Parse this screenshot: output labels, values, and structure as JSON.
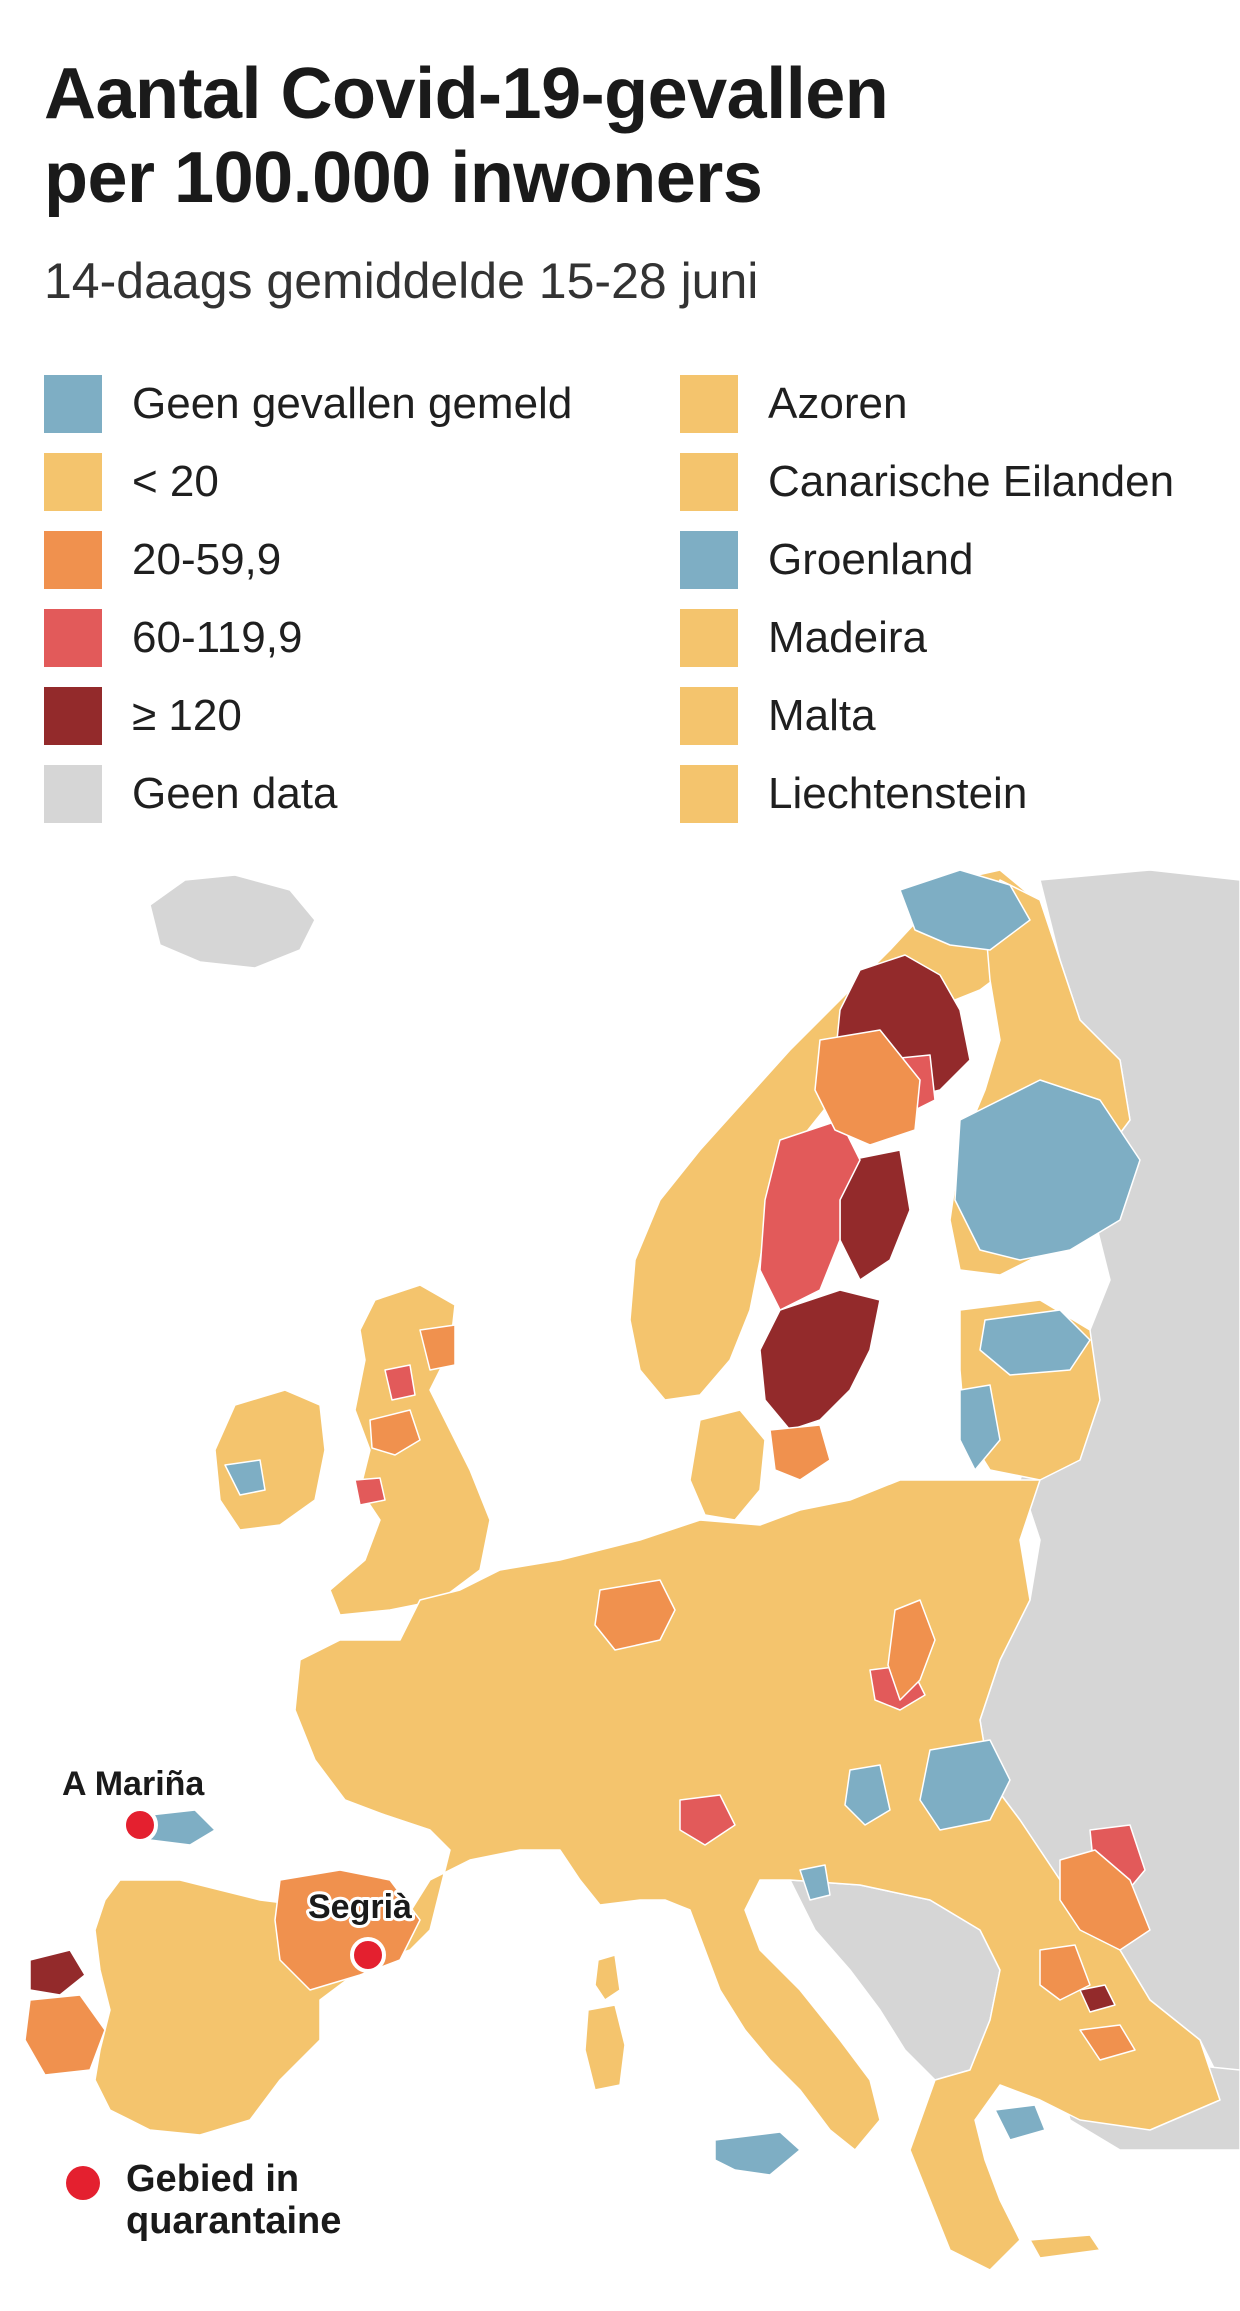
{
  "title": {
    "line1": "Aantal Covid-19-gevallen",
    "line2": "per 100.000 inwoners"
  },
  "subtitle": "14-daags gemiddelde 15-28 juni",
  "legend": {
    "categories": [
      {
        "label": "Geen gevallen gemeld",
        "color": "#7eaec4"
      },
      {
        "label": "< 20",
        "color": "#f4c46d"
      },
      {
        "label": "20-59,9",
        "color": "#f0914e"
      },
      {
        "label": "60-119,9",
        "color": "#e25a5a"
      },
      {
        "label": "≥ 120",
        "color": "#932a2b"
      },
      {
        "label": "Geen data",
        "color": "#d6d6d6"
      }
    ],
    "territories": [
      {
        "label": "Azoren",
        "color": "#f4c46d"
      },
      {
        "label": "Canarische Eilanden",
        "color": "#f4c46d"
      },
      {
        "label": "Groenland",
        "color": "#7eaec4"
      },
      {
        "label": "Madeira",
        "color": "#f4c46d"
      },
      {
        "label": "Malta",
        "color": "#f4c46d"
      },
      {
        "label": "Liechtenstein",
        "color": "#f4c46d"
      }
    ]
  },
  "map": {
    "quarantine_areas": [
      {
        "name": "A Mariña"
      },
      {
        "name": "Segrià"
      }
    ],
    "quarantine_color": "#e4202f"
  },
  "footnote": {
    "label": "Gebied in quarantaine"
  }
}
